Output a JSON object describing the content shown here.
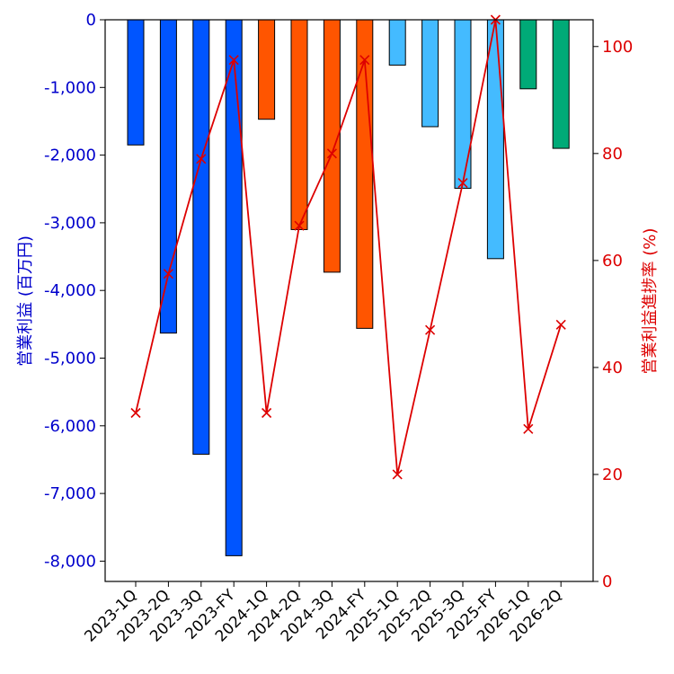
{
  "chart_data": {
    "type": "bar",
    "categories": [
      "2023-1Q",
      "2023-2Q",
      "2023-3Q",
      "2023-FY",
      "2024-1Q",
      "2024-2Q",
      "2024-3Q",
      "2024-FY",
      "2025-1Q",
      "2025-2Q",
      "2025-3Q",
      "2025-FY",
      "2026-1Q",
      "2026-2Q"
    ],
    "series": [
      {
        "name": "営業利益",
        "axis": "left",
        "kind": "bar",
        "values": [
          -1850,
          -4630,
          -6420,
          -7920,
          -1470,
          -3100,
          -3730,
          -4560,
          -670,
          -1580,
          -2490,
          -3530,
          -1020,
          -1900
        ],
        "colors": [
          "#0055ff",
          "#0055ff",
          "#0055ff",
          "#0055ff",
          "#ff5500",
          "#ff5500",
          "#ff5500",
          "#ff5500",
          "#44bbff",
          "#44bbff",
          "#44bbff",
          "#44bbff",
          "#00aa77",
          "#00aa77"
        ]
      },
      {
        "name": "営業利益進捗率",
        "axis": "right",
        "kind": "line",
        "marker": "x",
        "color": "#dd0000",
        "values": [
          31.5,
          57.5,
          79,
          97.5,
          31.5,
          66.5,
          80,
          97.5,
          20,
          47,
          74.5,
          105,
          28.5,
          48
        ]
      }
    ],
    "ylabel_left": "営業利益 (百万円)",
    "ylabel_right": "営業利益進捗率 (%)",
    "ylim_left": [
      -8300,
      0
    ],
    "ylim_right": [
      0,
      105
    ],
    "yticks_left": [
      0,
      -1000,
      -2000,
      -3000,
      -4000,
      -5000,
      -6000,
      -7000,
      -8000
    ],
    "ytick_labels_left": [
      "0",
      "-1,000",
      "-2,000",
      "-3,000",
      "-4,000",
      "-5,000",
      "-6,000",
      "-7,000",
      "-8,000"
    ],
    "yticks_right": [
      0,
      20,
      40,
      60,
      80,
      100
    ],
    "ytick_labels_right": [
      "0",
      "20",
      "40",
      "60",
      "80",
      "100"
    ],
    "colors": {
      "left_axis": "#0000cc",
      "right_axis": "#dd0000"
    }
  }
}
